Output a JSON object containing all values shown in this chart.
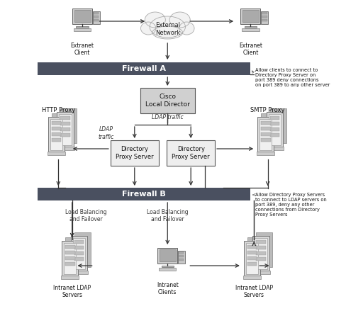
{
  "bg_color": "#ffffff",
  "firewall_dark": "#4a5060",
  "firewall_text_color": "#ffffff",
  "box_fill": "#e0e0e0",
  "box_border": "#555555",
  "note_a": "Allow clients to connect to\nDirectory Proxy Server on\nport 389 deny connections\non port 389 to any other server",
  "note_b": "Allow Directory Proxy Servers\nto connect to LDAP servers on\nport 389, deny any other\nconnections from Directory\nProxy Servers",
  "firewall_a": {
    "label": "Firewall A"
  },
  "firewall_b": {
    "label": "Firewall B"
  },
  "cisco_label": "Cisco\nLocal Director",
  "dps_label": "Directory\nProxy Server",
  "cloud_label": "External\nNetwork",
  "extranet_label": "Extranet\nClient",
  "http_proxy_label": "HTTP Proxy",
  "ldap_traffic_label": "LDAP\ntraffic",
  "ldap_traffic2_label": "LDAP traffic",
  "smtp_proxy_label": "SMTP Proxy",
  "lb1_label": "Load Balancing\nand Failover",
  "lb2_label": "Load Balancing\nand Failover",
  "intranet_ldap_label": "Intranet LDAP\nServers",
  "intranet_clients_label": "Intranet\nClients"
}
